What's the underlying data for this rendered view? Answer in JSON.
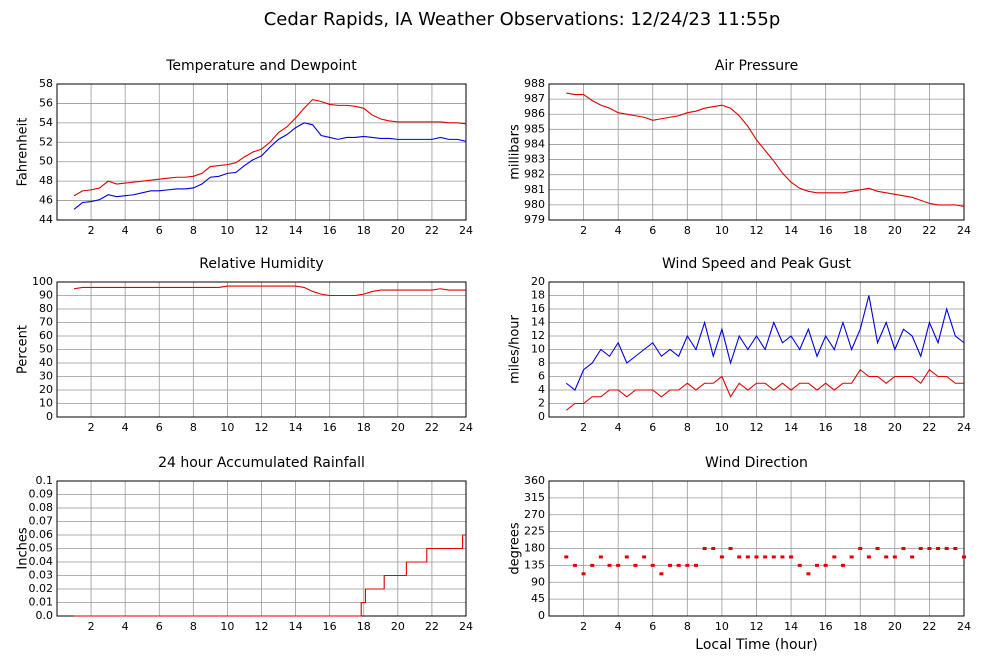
{
  "title": "Cedar Rapids, IA Weather Observations: 12/24/23 11:55p",
  "chart_data": [
    {
      "type": "line",
      "title": "Temperature and Dewpoint",
      "ylabel": "Fahrenheit",
      "xlim": [
        0,
        24
      ],
      "xticks": [
        2,
        4,
        6,
        8,
        10,
        12,
        14,
        16,
        18,
        20,
        22,
        24
      ],
      "ylim": [
        44,
        58
      ],
      "yticks": [
        44,
        46,
        48,
        50,
        52,
        54,
        56,
        58
      ],
      "grid": true,
      "x": [
        1,
        1.5,
        2,
        2.5,
        3,
        3.5,
        4,
        4.5,
        5,
        5.5,
        6,
        6.5,
        7,
        7.5,
        8,
        8.5,
        9,
        9.5,
        10,
        10.5,
        11,
        11.5,
        12,
        12.5,
        13,
        13.5,
        14,
        14.5,
        15,
        15.5,
        16,
        16.5,
        17,
        17.5,
        18,
        18.5,
        19,
        19.5,
        20,
        20.5,
        21,
        21.5,
        22,
        22.5,
        23,
        23.5,
        24
      ],
      "series": [
        {
          "color": "#e00000",
          "values": [
            46.5,
            47.0,
            47.1,
            47.3,
            48.0,
            47.7,
            47.8,
            47.9,
            48.0,
            48.1,
            48.2,
            48.3,
            48.4,
            48.4,
            48.5,
            48.8,
            49.5,
            49.6,
            49.7,
            49.9,
            50.5,
            51.0,
            51.3,
            52.0,
            53.0,
            53.6,
            54.5,
            55.5,
            56.4,
            56.2,
            55.9,
            55.8,
            55.8,
            55.7,
            55.5,
            54.8,
            54.4,
            54.2,
            54.1,
            54.1,
            54.1,
            54.1,
            54.1,
            54.1,
            54.0,
            54.0,
            53.9
          ]
        },
        {
          "color": "#0000e0",
          "values": [
            45.1,
            45.8,
            45.9,
            46.1,
            46.6,
            46.4,
            46.5,
            46.6,
            46.8,
            47.0,
            47.0,
            47.1,
            47.2,
            47.2,
            47.3,
            47.7,
            48.4,
            48.5,
            48.8,
            48.9,
            49.6,
            50.2,
            50.6,
            51.5,
            52.3,
            52.8,
            53.5,
            54.0,
            53.8,
            52.7,
            52.5,
            52.3,
            52.5,
            52.5,
            52.6,
            52.5,
            52.4,
            52.4,
            52.3,
            52.3,
            52.3,
            52.3,
            52.3,
            52.5,
            52.3,
            52.3,
            52.1
          ]
        }
      ]
    },
    {
      "type": "line",
      "title": "Air Pressure",
      "ylabel": "millibars",
      "xlim": [
        0,
        24
      ],
      "xticks": [
        2,
        4,
        6,
        8,
        10,
        12,
        14,
        16,
        18,
        20,
        22,
        24
      ],
      "ylim": [
        979,
        988
      ],
      "yticks": [
        979,
        980,
        981,
        982,
        983,
        984,
        985,
        986,
        987,
        988
      ],
      "grid": true,
      "x": [
        1,
        1.5,
        2,
        2.5,
        3,
        3.5,
        4,
        4.5,
        5,
        5.5,
        6,
        6.5,
        7,
        7.5,
        8,
        8.5,
        9,
        9.5,
        10,
        10.5,
        11,
        11.5,
        12,
        12.5,
        13,
        13.5,
        14,
        14.5,
        15,
        15.5,
        16,
        16.5,
        17,
        17.5,
        18,
        18.5,
        19,
        19.5,
        20,
        20.5,
        21,
        21.5,
        22,
        22.5,
        23,
        23.5,
        24
      ],
      "series": [
        {
          "color": "#e00000",
          "values": [
            987.4,
            987.3,
            987.3,
            986.9,
            986.6,
            986.4,
            986.1,
            986.0,
            985.9,
            985.8,
            985.6,
            985.7,
            985.8,
            985.9,
            986.1,
            986.2,
            986.4,
            986.5,
            986.6,
            986.4,
            985.9,
            985.2,
            984.3,
            983.6,
            982.9,
            982.1,
            981.5,
            981.1,
            980.9,
            980.8,
            980.8,
            980.8,
            980.8,
            980.9,
            981.0,
            981.1,
            980.9,
            980.8,
            980.7,
            980.6,
            980.5,
            980.3,
            980.1,
            980.0,
            980.0,
            980.0,
            979.9
          ]
        }
      ]
    },
    {
      "type": "line",
      "title": "Relative Humidity",
      "ylabel": "Percent",
      "xlim": [
        0,
        24
      ],
      "xticks": [
        2,
        4,
        6,
        8,
        10,
        12,
        14,
        16,
        18,
        20,
        22,
        24
      ],
      "ylim": [
        0,
        100
      ],
      "yticks": [
        0,
        10,
        20,
        30,
        40,
        50,
        60,
        70,
        80,
        90,
        100
      ],
      "grid": true,
      "x": [
        1,
        1.5,
        2,
        2.5,
        3,
        3.5,
        4,
        4.5,
        5,
        5.5,
        6,
        6.5,
        7,
        7.5,
        8,
        8.5,
        9,
        9.5,
        10,
        10.5,
        11,
        11.5,
        12,
        12.5,
        13,
        13.5,
        14,
        14.5,
        15,
        15.5,
        16,
        16.5,
        17,
        17.5,
        18,
        18.5,
        19,
        19.5,
        20,
        20.5,
        21,
        21.5,
        22,
        22.5,
        23,
        23.5,
        24
      ],
      "series": [
        {
          "color": "#e00000",
          "values": [
            95,
            96,
            96,
            96,
            96,
            96,
            96,
            96,
            96,
            96,
            96,
            96,
            96,
            96,
            96,
            96,
            96,
            96,
            97,
            97,
            97,
            97,
            97,
            97,
            97,
            97,
            97,
            96,
            93,
            91,
            90,
            90,
            90,
            90,
            91,
            93,
            94,
            94,
            94,
            94,
            94,
            94,
            94,
            95,
            94,
            94,
            94
          ]
        }
      ]
    },
    {
      "type": "line",
      "title": "Wind Speed and Peak Gust",
      "ylabel": "miles/hour",
      "xlim": [
        0,
        24
      ],
      "xticks": [
        2,
        4,
        6,
        8,
        10,
        12,
        14,
        16,
        18,
        20,
        22,
        24
      ],
      "ylim": [
        0,
        20
      ],
      "yticks": [
        0,
        2,
        4,
        6,
        8,
        10,
        12,
        14,
        16,
        18,
        20
      ],
      "grid": true,
      "x": [
        1,
        1.5,
        2,
        2.5,
        3,
        3.5,
        4,
        4.5,
        5,
        5.5,
        6,
        6.5,
        7,
        7.5,
        8,
        8.5,
        9,
        9.5,
        10,
        10.5,
        11,
        11.5,
        12,
        12.5,
        13,
        13.5,
        14,
        14.5,
        15,
        15.5,
        16,
        16.5,
        17,
        17.5,
        18,
        18.5,
        19,
        19.5,
        20,
        20.5,
        21,
        21.5,
        22,
        22.5,
        23,
        23.5,
        24
      ],
      "series": [
        {
          "color": "#0000e0",
          "values": [
            5,
            4,
            7,
            8,
            10,
            9,
            11,
            8,
            9,
            10,
            11,
            9,
            10,
            9,
            12,
            10,
            14,
            9,
            13,
            8,
            12,
            10,
            12,
            10,
            14,
            11,
            12,
            10,
            13,
            9,
            12,
            10,
            14,
            10,
            13,
            18,
            11,
            14,
            10,
            13,
            12,
            9,
            14,
            11,
            16,
            12,
            11
          ]
        },
        {
          "color": "#e00000",
          "values": [
            1,
            2,
            2,
            3,
            3,
            4,
            4,
            3,
            4,
            4,
            4,
            3,
            4,
            4,
            5,
            4,
            5,
            5,
            6,
            3,
            5,
            4,
            5,
            5,
            4,
            5,
            4,
            5,
            5,
            4,
            5,
            4,
            5,
            5,
            7,
            6,
            6,
            5,
            6,
            6,
            6,
            5,
            7,
            6,
            6,
            5,
            5
          ]
        }
      ]
    },
    {
      "type": "line",
      "title": "24 hour Accumulated Rainfall",
      "ylabel": "Inches",
      "xlim": [
        0,
        24
      ],
      "xticks": [
        2,
        4,
        6,
        8,
        10,
        12,
        14,
        16,
        18,
        20,
        22,
        24
      ],
      "ylim": [
        0,
        0.1
      ],
      "yticks": [
        {
          "value": 0,
          "label": "0.0"
        },
        0.01,
        0.02,
        0.03,
        0.04,
        0.05,
        0.06,
        0.07,
        0.08,
        0.09,
        0.1
      ],
      "grid": true,
      "x": [
        1,
        17.85,
        17.85,
        18.1,
        18.1,
        19.2,
        19.2,
        20.5,
        20.5,
        21.7,
        21.7,
        23.8,
        23.8,
        24
      ],
      "series": [
        {
          "color": "#e00000",
          "values": [
            0,
            0,
            0.01,
            0.01,
            0.02,
            0.02,
            0.03,
            0.03,
            0.04,
            0.04,
            0.05,
            0.05,
            0.06,
            0.06
          ]
        }
      ]
    },
    {
      "type": "scatter",
      "title": "Wind Direction",
      "ylabel": "degrees",
      "xlabel": "Local Time (hour)",
      "xlim": [
        0,
        24
      ],
      "xticks": [
        2,
        4,
        6,
        8,
        10,
        12,
        14,
        16,
        18,
        20,
        22,
        24
      ],
      "ylim": [
        0,
        360
      ],
      "yticks": [
        0,
        45,
        90,
        135,
        180,
        225,
        270,
        315,
        360
      ],
      "grid": true,
      "x": [
        1,
        1.5,
        2,
        2.5,
        3,
        3.5,
        4,
        4.5,
        5,
        5.5,
        6,
        6.5,
        7,
        7.5,
        8,
        8.5,
        9,
        9.5,
        10,
        10.5,
        11,
        11.5,
        12,
        12.5,
        13,
        13.5,
        14,
        14.5,
        15,
        15.5,
        16,
        16.5,
        17,
        17.5,
        18,
        18.5,
        19,
        19.5,
        20,
        20.5,
        21,
        21.5,
        22,
        22.5,
        23,
        23.5,
        24
      ],
      "series": [
        {
          "color": "#e00000",
          "values": [
            157.5,
            135,
            112.5,
            135,
            157.5,
            135,
            135,
            157.5,
            135,
            157.5,
            135,
            112.5,
            135,
            135,
            135,
            135,
            180,
            180,
            157.5,
            180,
            157.5,
            157.5,
            157.5,
            157.5,
            157.5,
            157.5,
            157.5,
            135,
            112.5,
            135,
            135,
            157.5,
            135,
            157.5,
            180,
            157.5,
            180,
            157.5,
            157.5,
            180,
            157.5,
            180,
            180,
            180,
            180,
            180,
            157.5
          ]
        }
      ]
    }
  ]
}
